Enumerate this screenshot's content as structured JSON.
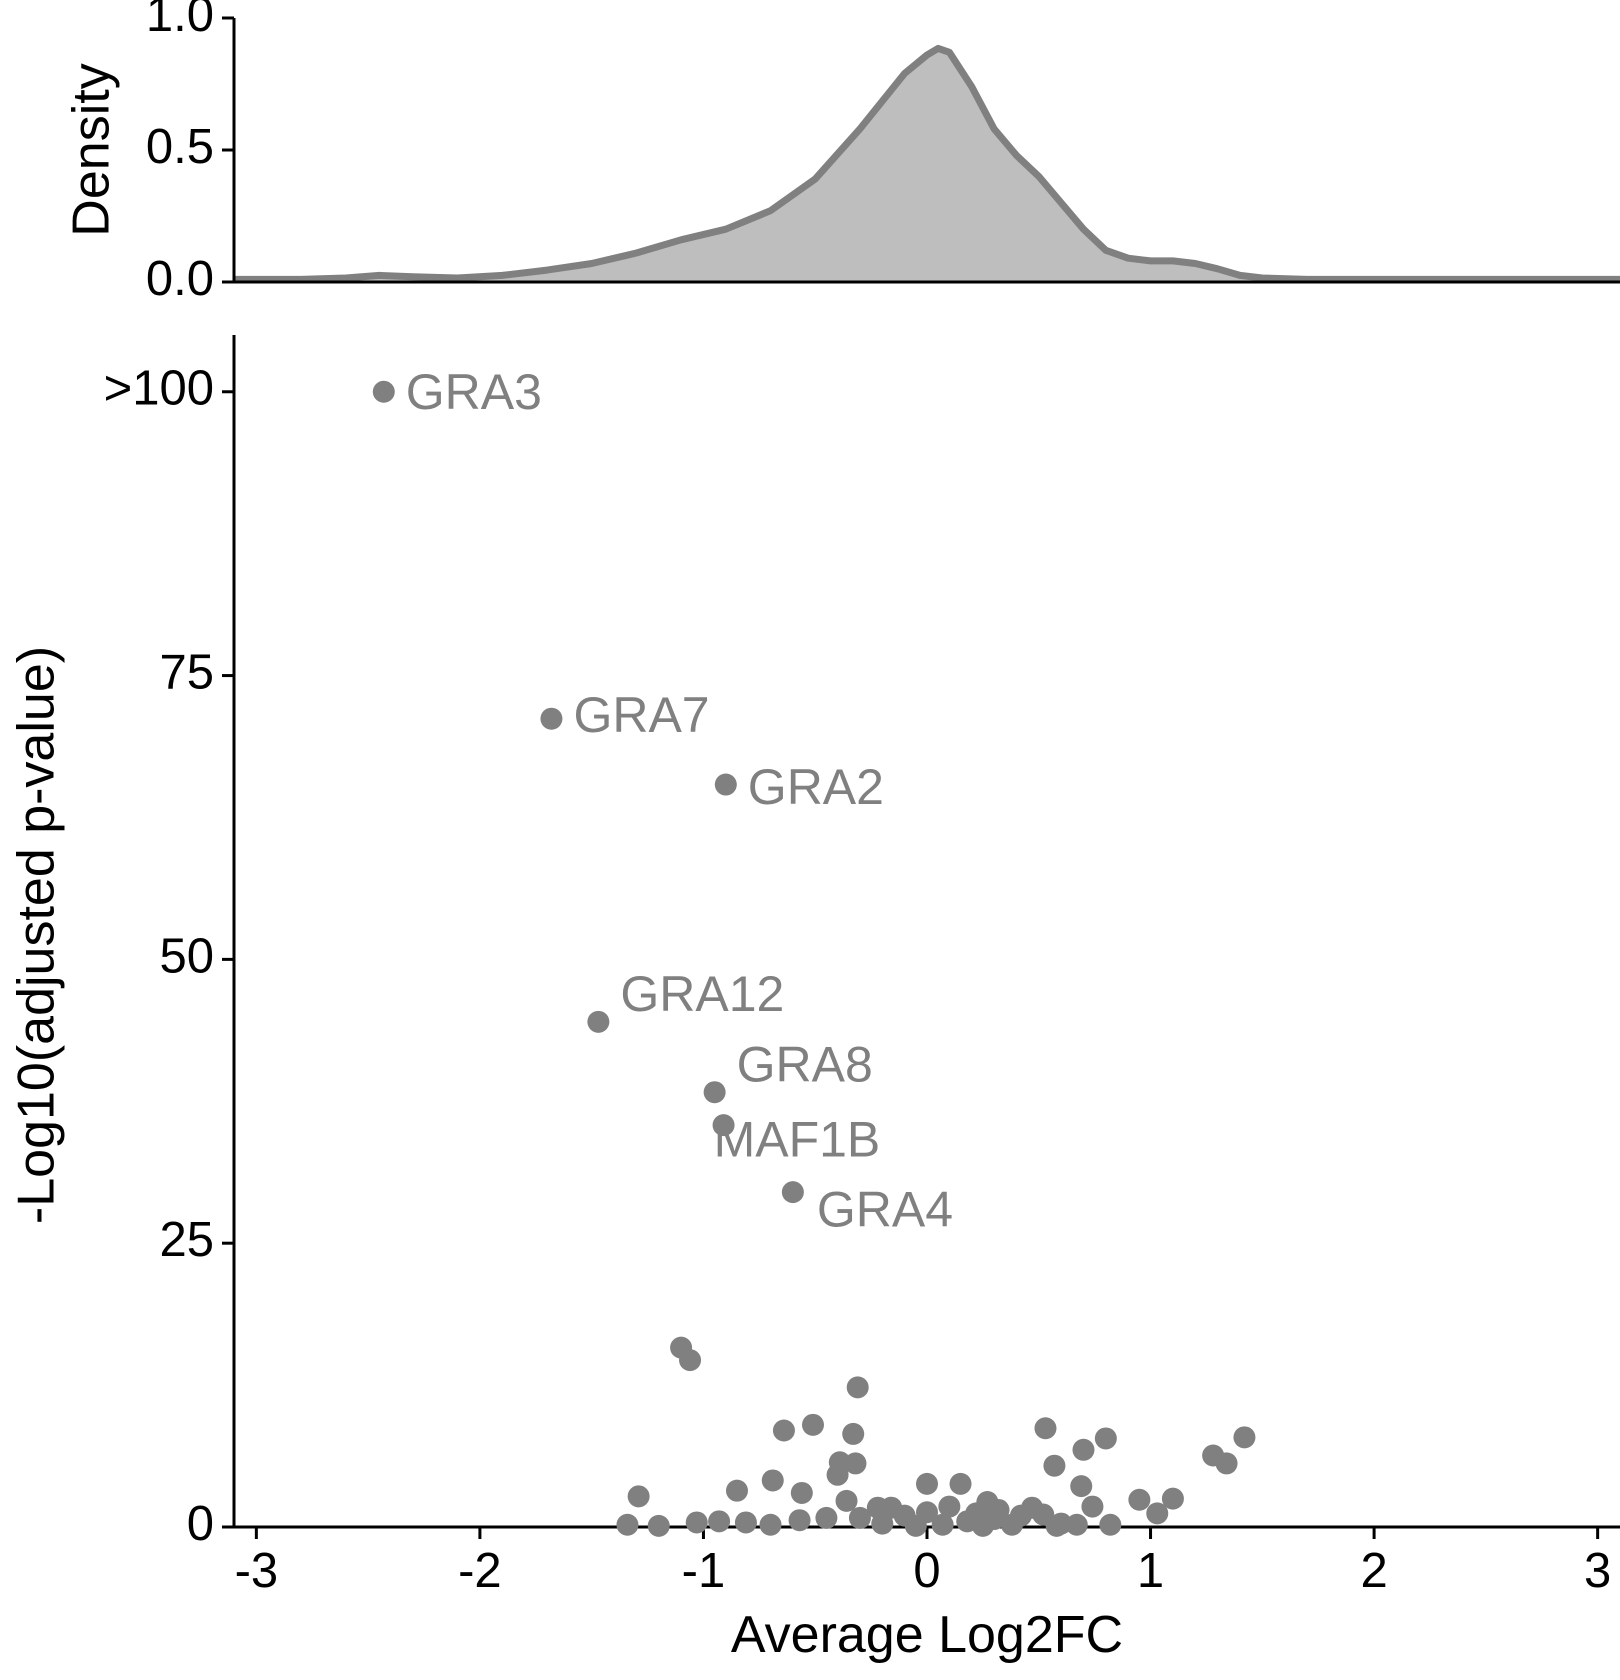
{
  "colors": {
    "point": "#808080",
    "label": "#808080",
    "density_fill": "#bebebe",
    "density_line": "#808080",
    "axis": "#000000"
  },
  "chart_data": [
    {
      "type": "area",
      "panel": "density",
      "ylabel": "Density",
      "xlim": [
        -3.1,
        3.1
      ],
      "ylim": [
        0,
        1.0
      ],
      "y_ticks": [
        {
          "value": 0.0,
          "label": "0.0"
        },
        {
          "value": 0.5,
          "label": "0.5"
        },
        {
          "value": 1.0,
          "label": "1.0"
        }
      ],
      "x": [
        -3.1,
        -2.8,
        -2.6,
        -2.45,
        -2.3,
        -2.1,
        -1.9,
        -1.7,
        -1.5,
        -1.3,
        -1.1,
        -0.9,
        -0.7,
        -0.5,
        -0.3,
        -0.1,
        0.0,
        0.05,
        0.1,
        0.2,
        0.3,
        0.4,
        0.5,
        0.6,
        0.7,
        0.8,
        0.9,
        1.0,
        1.1,
        1.2,
        1.3,
        1.4,
        1.5,
        1.7,
        2.0,
        2.5,
        3.1
      ],
      "y": [
        0.01,
        0.01,
        0.015,
        0.025,
        0.02,
        0.015,
        0.025,
        0.045,
        0.07,
        0.11,
        0.16,
        0.2,
        0.27,
        0.39,
        0.58,
        0.79,
        0.86,
        0.885,
        0.87,
        0.74,
        0.58,
        0.48,
        0.4,
        0.3,
        0.2,
        0.12,
        0.09,
        0.08,
        0.08,
        0.07,
        0.05,
        0.025,
        0.015,
        0.01,
        0.01,
        0.01,
        0.01
      ]
    },
    {
      "type": "scatter",
      "panel": "volcano",
      "xlabel": "Average Log2FC",
      "ylabel": "-Log10(adjusted p-value)",
      "xlim": [
        -3.1,
        3.1
      ],
      "ylim": [
        0,
        105
      ],
      "x_ticks": [
        {
          "value": -3,
          "label": "-3"
        },
        {
          "value": -2,
          "label": "-2"
        },
        {
          "value": -1,
          "label": "-1"
        },
        {
          "value": 0,
          "label": "0"
        },
        {
          "value": 1,
          "label": "1"
        },
        {
          "value": 2,
          "label": "2"
        },
        {
          "value": 3,
          "label": "3"
        }
      ],
      "y_ticks": [
        {
          "value": 0,
          "label": "0"
        },
        {
          "value": 25,
          "label": "25"
        },
        {
          "value": 50,
          "label": "50"
        },
        {
          "value": 75,
          "label": "75"
        },
        {
          "value": 100,
          "label": ">100"
        }
      ],
      "labeled_points": [
        {
          "label": "GRA3",
          "x": -2.43,
          "y": 100.0
        },
        {
          "label": "GRA7",
          "x": -1.68,
          "y": 71.2
        },
        {
          "label": "GRA2",
          "x": -0.9,
          "y": 65.4
        },
        {
          "label": "GRA12",
          "x": -1.47,
          "y": 44.5
        },
        {
          "label": "GRA8",
          "x": -0.95,
          "y": 38.3
        },
        {
          "label": "MAF1B",
          "x": -0.91,
          "y": 35.4
        },
        {
          "label": "GRA4",
          "x": -0.6,
          "y": 29.5
        }
      ],
      "points": [
        {
          "x": -1.1,
          "y": 15.8
        },
        {
          "x": -1.06,
          "y": 14.7
        },
        {
          "x": -0.31,
          "y": 12.3
        },
        {
          "x": -0.64,
          "y": 8.5
        },
        {
          "x": -0.51,
          "y": 9.0
        },
        {
          "x": -0.33,
          "y": 8.2
        },
        {
          "x": 0.53,
          "y": 8.7
        },
        {
          "x": 0.8,
          "y": 7.8
        },
        {
          "x": 0.7,
          "y": 6.8
        },
        {
          "x": 1.42,
          "y": 7.9
        },
        {
          "x": 1.28,
          "y": 6.3
        },
        {
          "x": 1.34,
          "y": 5.6
        },
        {
          "x": -0.39,
          "y": 5.7
        },
        {
          "x": -0.32,
          "y": 5.6
        },
        {
          "x": -0.4,
          "y": 4.6
        },
        {
          "x": 0.57,
          "y": 5.4
        },
        {
          "x": -0.69,
          "y": 4.1
        },
        {
          "x": 0.69,
          "y": 3.6
        },
        {
          "x": -0.85,
          "y": 3.2
        },
        {
          "x": -0.56,
          "y": 3.0
        },
        {
          "x": -1.29,
          "y": 2.7
        },
        {
          "x": 0.0,
          "y": 3.8
        },
        {
          "x": 0.15,
          "y": 3.8
        },
        {
          "x": -0.36,
          "y": 2.3
        },
        {
          "x": 0.95,
          "y": 2.4
        },
        {
          "x": 1.1,
          "y": 2.5
        },
        {
          "x": 0.27,
          "y": 2.2
        },
        {
          "x": -0.22,
          "y": 1.7
        },
        {
          "x": -0.16,
          "y": 1.7
        },
        {
          "x": 0.74,
          "y": 1.8
        },
        {
          "x": 0.47,
          "y": 1.7
        },
        {
          "x": 0.1,
          "y": 1.8
        },
        {
          "x": 0.32,
          "y": 1.5
        },
        {
          "x": 0.22,
          "y": 1.2
        },
        {
          "x": 0.0,
          "y": 1.3
        },
        {
          "x": -0.1,
          "y": 1.0
        },
        {
          "x": 0.52,
          "y": 1.1
        },
        {
          "x": 1.03,
          "y": 1.2
        },
        {
          "x": 0.42,
          "y": 1.0
        },
        {
          "x": -0.45,
          "y": 0.8
        },
        {
          "x": -0.3,
          "y": 0.8
        },
        {
          "x": 0.3,
          "y": 0.7
        },
        {
          "x": -0.57,
          "y": 0.6
        },
        {
          "x": -0.93,
          "y": 0.5
        },
        {
          "x": 0.18,
          "y": 0.5
        },
        {
          "x": -1.03,
          "y": 0.4
        },
        {
          "x": -0.81,
          "y": 0.4
        },
        {
          "x": -0.2,
          "y": 0.3
        },
        {
          "x": 0.6,
          "y": 0.3
        },
        {
          "x": 0.82,
          "y": 0.2
        },
        {
          "x": -1.34,
          "y": 0.2
        },
        {
          "x": -1.2,
          "y": 0.1
        },
        {
          "x": -0.7,
          "y": 0.2
        },
        {
          "x": 0.07,
          "y": 0.2
        },
        {
          "x": 0.38,
          "y": 0.2
        },
        {
          "x": 0.67,
          "y": 0.2
        },
        {
          "x": -0.05,
          "y": 0.1
        },
        {
          "x": 0.25,
          "y": 0.1
        },
        {
          "x": 0.58,
          "y": 0.1
        }
      ]
    }
  ]
}
